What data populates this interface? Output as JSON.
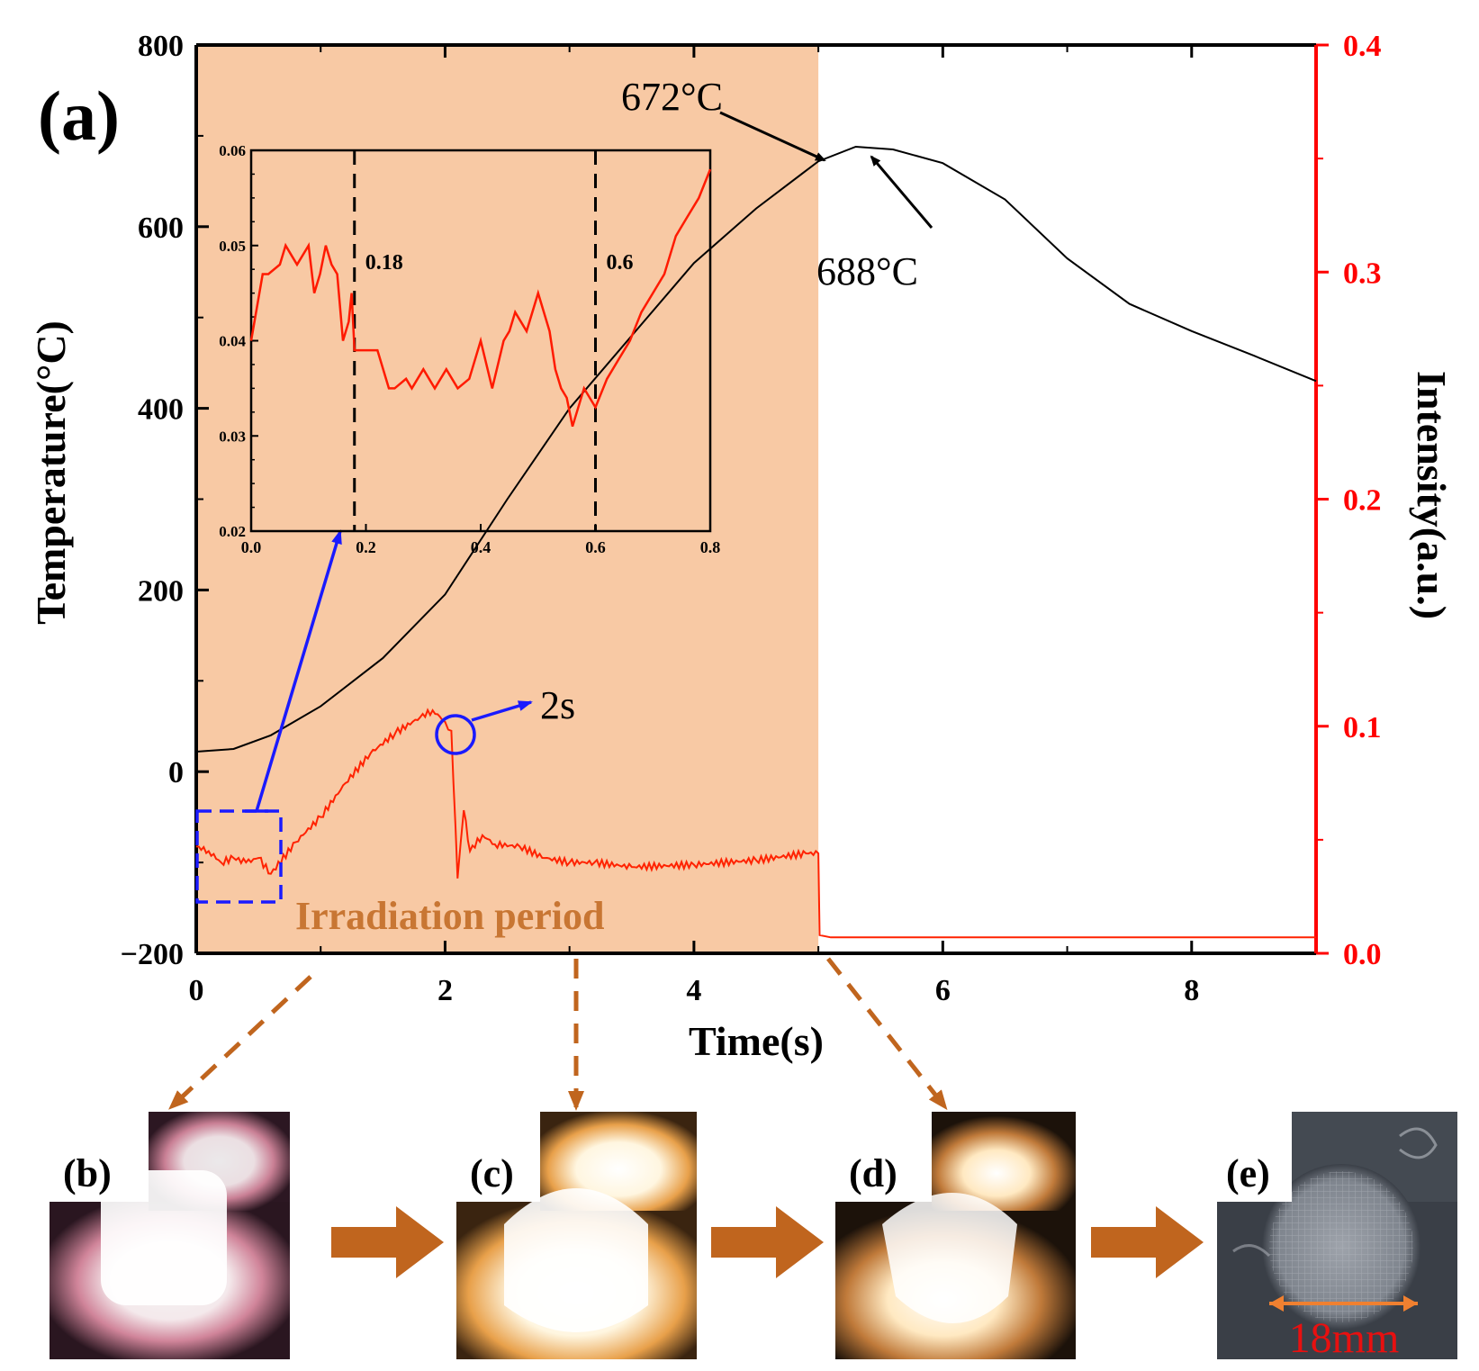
{
  "panel_labels": {
    "a": "(a)",
    "b": "(b)",
    "c": "(c)",
    "d": "(d)",
    "e": "(e)"
  },
  "chart_data": {
    "type": "line",
    "title": "",
    "xlabel": "Time(s)",
    "ylabel_left": "Temperature(°C)",
    "ylabel_right": "Intensity(a.u.)",
    "xlim": [
      0,
      9
    ],
    "ylim_left": [
      -200,
      800
    ],
    "ylim_right": [
      0.0,
      0.4
    ],
    "x_ticks": [
      0,
      2,
      4,
      6,
      8
    ],
    "x_tick_labels": [
      "0",
      "2",
      "4",
      "6",
      "8"
    ],
    "y_left_ticks": [
      -200,
      0,
      200,
      400,
      600,
      800
    ],
    "y_left_tick_labels": [
      "−200",
      "0",
      "200",
      "400",
      "600",
      "800"
    ],
    "y_right_ticks": [
      0.0,
      0.1,
      0.2,
      0.3,
      0.4
    ],
    "y_right_tick_labels": [
      "0.0",
      "0.1",
      "0.2",
      "0.3",
      "0.4"
    ],
    "shaded_region": {
      "x": [
        0,
        5
      ],
      "label": "Irradiation period",
      "color": "#f8c9a4"
    },
    "series": [
      {
        "name": "Temperature",
        "axis": "left",
        "color": "#000000",
        "x": [
          0,
          0.3,
          0.6,
          1.0,
          1.5,
          2.0,
          2.5,
          3.0,
          3.5,
          4.0,
          4.5,
          5.0,
          5.3,
          5.6,
          6.0,
          6.5,
          7.0,
          7.5,
          8.0,
          8.5,
          9.0
        ],
        "y": [
          22,
          25,
          40,
          72,
          125,
          195,
          300,
          400,
          480,
          560,
          620,
          672,
          688,
          685,
          670,
          630,
          565,
          515,
          485,
          458,
          430
        ]
      },
      {
        "name": "Intensity",
        "axis": "right",
        "color": "#ff2200",
        "x": [
          0,
          0.1,
          0.2,
          0.3,
          0.4,
          0.5,
          0.6,
          0.8,
          1.0,
          1.2,
          1.4,
          1.6,
          1.8,
          1.9,
          2.0,
          2.05,
          2.1,
          2.15,
          2.2,
          2.3,
          2.4,
          2.6,
          2.8,
          3.0,
          3.2,
          3.5,
          4.0,
          4.5,
          4.9,
          5.0,
          5.01,
          5.1,
          6.0,
          7.0,
          8.0,
          9.0
        ],
        "y": [
          0.047,
          0.045,
          0.04,
          0.042,
          0.04,
          0.042,
          0.035,
          0.049,
          0.06,
          0.075,
          0.088,
          0.097,
          0.104,
          0.107,
          0.102,
          0.098,
          0.033,
          0.063,
          0.045,
          0.052,
          0.048,
          0.047,
          0.042,
          0.04,
          0.04,
          0.038,
          0.039,
          0.041,
          0.044,
          0.044,
          0.008,
          0.007,
          0.007,
          0.007,
          0.007,
          0.007
        ]
      }
    ],
    "annotations": [
      {
        "text": "672°C",
        "x": 5.0,
        "y": 672
      },
      {
        "text": "688°C",
        "x": 5.3,
        "y": 688
      },
      {
        "text": "2s",
        "x": 2.05,
        "y": 0.102
      },
      {
        "text": "Irradiation period",
        "x": 2.2,
        "y": -160
      }
    ],
    "inset": {
      "type": "line",
      "xlim": [
        0.0,
        0.8
      ],
      "ylim": [
        0.02,
        0.06
      ],
      "x_ticks": [
        0.0,
        0.2,
        0.4,
        0.6,
        0.8
      ],
      "x_tick_labels": [
        "0.0",
        "0.2",
        "0.4",
        "0.6",
        "0.8"
      ],
      "y_ticks": [
        0.02,
        0.03,
        0.04,
        0.05,
        0.06
      ],
      "y_tick_labels": [
        "0.02",
        "0.03",
        "0.04",
        "0.05",
        "0.06"
      ],
      "vlines": [
        {
          "x": 0.18,
          "label": "0.18"
        },
        {
          "x": 0.6,
          "label": "0.6"
        }
      ],
      "series": {
        "name": "Intensity (zoom)",
        "color": "#ff1a00",
        "x": [
          0.0,
          0.02,
          0.03,
          0.05,
          0.06,
          0.07,
          0.08,
          0.1,
          0.11,
          0.12,
          0.13,
          0.14,
          0.15,
          0.16,
          0.17,
          0.175,
          0.18,
          0.2,
          0.22,
          0.24,
          0.25,
          0.27,
          0.28,
          0.3,
          0.32,
          0.34,
          0.36,
          0.38,
          0.4,
          0.42,
          0.44,
          0.45,
          0.46,
          0.48,
          0.5,
          0.52,
          0.53,
          0.54,
          0.55,
          0.56,
          0.58,
          0.6,
          0.62,
          0.64,
          0.66,
          0.68,
          0.7,
          0.72,
          0.74,
          0.76,
          0.78,
          0.8
        ],
        "y": [
          0.04,
          0.047,
          0.047,
          0.048,
          0.05,
          0.049,
          0.048,
          0.05,
          0.045,
          0.047,
          0.05,
          0.048,
          0.047,
          0.04,
          0.042,
          0.045,
          0.039,
          0.039,
          0.039,
          0.035,
          0.035,
          0.036,
          0.035,
          0.037,
          0.035,
          0.037,
          0.035,
          0.036,
          0.04,
          0.035,
          0.04,
          0.041,
          0.043,
          0.041,
          0.045,
          0.041,
          0.037,
          0.035,
          0.034,
          0.031,
          0.035,
          0.033,
          0.036,
          0.038,
          0.04,
          0.043,
          0.045,
          0.047,
          0.051,
          0.053,
          0.055,
          0.058
        ]
      }
    }
  },
  "photos": {
    "scale_label": "18mm"
  }
}
